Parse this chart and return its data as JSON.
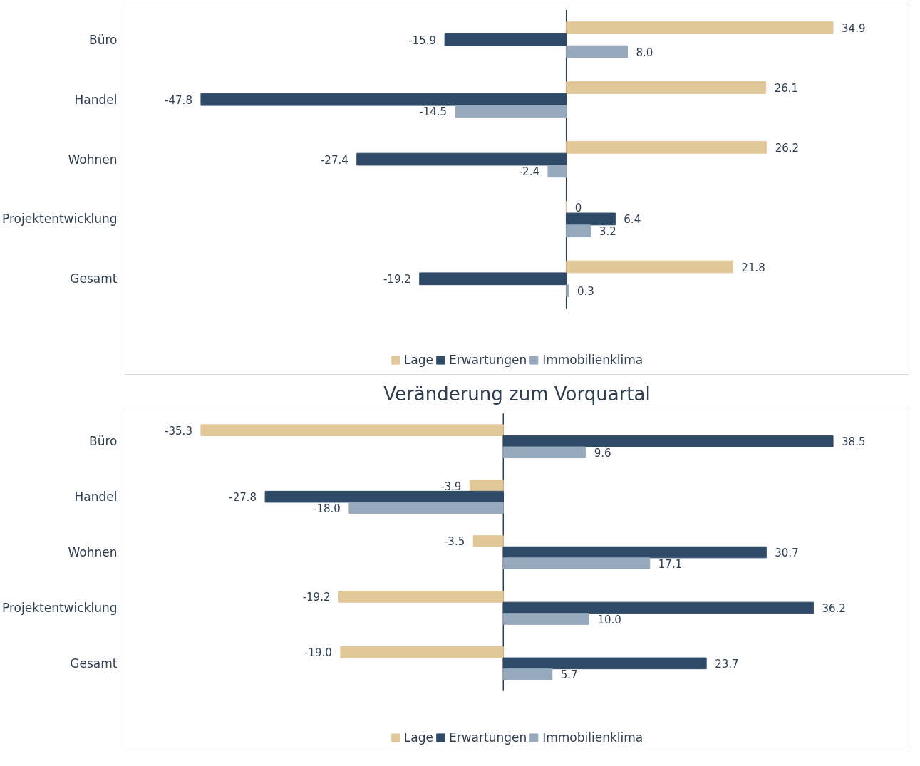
{
  "chart_data": [
    {
      "type": "bar",
      "orientation": "horizontal",
      "grid": false,
      "legend": "bottom",
      "categories": [
        "Büro",
        "Handel",
        "Wohnen",
        "Projektentwicklung",
        "Gesamt"
      ],
      "series": [
        {
          "name": "Lage",
          "color": "#e2c799",
          "values": [
            34.9,
            26.1,
            26.2,
            0,
            21.8
          ],
          "value_labels": [
            "34.9",
            "26.1",
            "26.2",
            "0",
            "21.8"
          ]
        },
        {
          "name": "Erwartungen",
          "color": "#2e4a66",
          "values": [
            -15.9,
            -47.8,
            -27.4,
            6.4,
            -19.2
          ],
          "value_labels": [
            "-15.9",
            "-47.8",
            "-27.4",
            "6.4",
            "-19.2"
          ]
        },
        {
          "name": "Immobilienklima",
          "color": "#97a9bd",
          "values": [
            8.0,
            -14.5,
            -2.4,
            3.2,
            0.3
          ],
          "value_labels": [
            "8.0",
            "-14.5",
            "-2.4",
            "3.2",
            "0.3"
          ]
        }
      ]
    },
    {
      "type": "bar",
      "orientation": "horizontal",
      "grid": false,
      "legend": "bottom",
      "title": "Veränderung zum Vorquartal",
      "categories": [
        "Büro",
        "Handel",
        "Wohnen",
        "Projektentwicklung",
        "Gesamt"
      ],
      "series": [
        {
          "name": "Lage",
          "color": "#e2c799",
          "values": [
            -35.3,
            -3.9,
            -3.5,
            -19.2,
            -19.0
          ],
          "value_labels": [
            "-35.3",
            "-3.9",
            "-3.5",
            "-19.2",
            "-19.0"
          ]
        },
        {
          "name": "Erwartungen",
          "color": "#2e4a66",
          "values": [
            38.5,
            -27.8,
            30.7,
            36.2,
            23.7
          ],
          "value_labels": [
            "38.5",
            "-27.8",
            "30.7",
            "36.2",
            "23.7"
          ]
        },
        {
          "name": "Immobilienklima",
          "color": "#97a9bd",
          "values": [
            9.6,
            -18.0,
            17.1,
            10.0,
            5.7
          ],
          "value_labels": [
            "9.6",
            "-18.0",
            "17.1",
            "10.0",
            "5.7"
          ]
        }
      ]
    }
  ]
}
